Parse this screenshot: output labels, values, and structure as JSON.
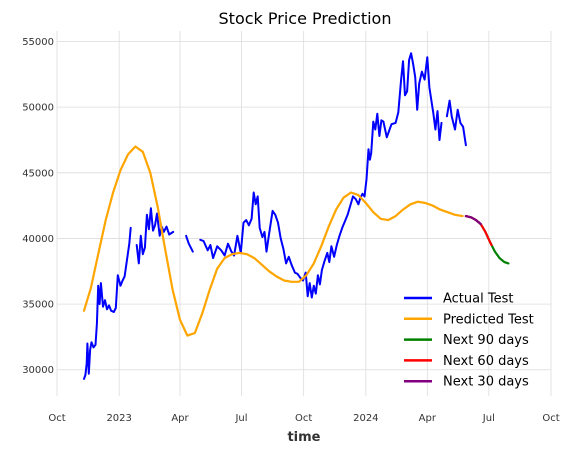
{
  "chart_data": {
    "type": "line",
    "title": "Stock Price Prediction",
    "xlabel": "time",
    "ylabel": "",
    "grid": true,
    "legend_position": "bottom-right",
    "x_axis_type": "date",
    "xlim": [
      "2022-10-01",
      "2024-10-01"
    ],
    "ylim": [
      28000,
      55800
    ],
    "x_ticks": [
      {
        "date": "2022-10-01",
        "label": "Oct"
      },
      {
        "date": "2023-01-01",
        "label": "2023"
      },
      {
        "date": "2023-04-01",
        "label": "Apr"
      },
      {
        "date": "2023-07-01",
        "label": "Jul"
      },
      {
        "date": "2023-10-01",
        "label": "Oct"
      },
      {
        "date": "2024-01-01",
        "label": "2024"
      },
      {
        "date": "2024-04-01",
        "label": "Apr"
      },
      {
        "date": "2024-07-01",
        "label": "Jul"
      },
      {
        "date": "2024-10-01",
        "label": "Oct"
      }
    ],
    "y_ticks": [
      30000,
      35000,
      40000,
      45000,
      50000,
      55000
    ],
    "y_tick_labels": [
      "30000",
      "35000",
      "40000",
      "45000",
      "50000",
      "55000"
    ],
    "series": [
      {
        "name": "Actual Test",
        "color": "#0000ff",
        "points": [
          [
            "2022-11-10",
            29300
          ],
          [
            "2022-11-12",
            29600
          ],
          [
            "2022-11-14",
            30500
          ],
          [
            "2022-11-15",
            32000
          ],
          [
            "2022-11-17",
            29700
          ],
          [
            "2022-11-19",
            31500
          ],
          [
            "2022-11-21",
            32100
          ],
          [
            "2022-11-24",
            31700
          ],
          [
            "2022-11-27",
            31900
          ],
          [
            "2022-11-29",
            33500
          ],
          [
            "2022-12-01",
            36400
          ],
          [
            "2022-12-03",
            35000
          ],
          [
            "2022-12-05",
            36600
          ],
          [
            "2022-12-08",
            34800
          ],
          [
            "2022-12-11",
            35300
          ],
          [
            "2022-12-14",
            34600
          ],
          [
            "2022-12-17",
            34900
          ],
          [
            "2022-12-20",
            34500
          ],
          [
            "2022-12-24",
            34400
          ],
          [
            "2022-12-27",
            34700
          ],
          [
            "2022-12-30",
            37200
          ],
          [
            "2023-01-03",
            36400
          ],
          [
            "2023-01-06",
            36800
          ],
          [
            "2023-01-09",
            37100
          ],
          [
            "2023-01-16",
            39600
          ],
          [
            "2023-01-18",
            40800
          ],
          [
            "2023-01-27",
            39500
          ],
          [
            "2023-01-30",
            38100
          ],
          [
            "2023-02-02",
            40200
          ],
          [
            "2023-02-05",
            38800
          ],
          [
            "2023-02-08",
            39300
          ],
          [
            "2023-02-11",
            41800
          ],
          [
            "2023-02-14",
            40700
          ],
          [
            "2023-02-17",
            42300
          ],
          [
            "2023-02-20",
            40600
          ],
          [
            "2023-02-23",
            41000
          ],
          [
            "2023-02-26",
            41900
          ],
          [
            "2023-03-02",
            40200
          ],
          [
            "2023-03-05",
            40900
          ],
          [
            "2023-03-08",
            40500
          ],
          [
            "2023-03-12",
            40900
          ],
          [
            "2023-03-16",
            40300
          ],
          [
            "2023-03-22",
            40500
          ],
          [
            "2023-04-10",
            40200
          ],
          [
            "2023-04-14",
            39600
          ],
          [
            "2023-04-20",
            39000
          ],
          [
            "2023-05-01",
            39900
          ],
          [
            "2023-05-06",
            39800
          ],
          [
            "2023-05-12",
            39100
          ],
          [
            "2023-05-16",
            39500
          ],
          [
            "2023-05-20",
            38500
          ],
          [
            "2023-05-26",
            39400
          ],
          [
            "2023-06-01",
            39100
          ],
          [
            "2023-06-06",
            38700
          ],
          [
            "2023-06-11",
            39600
          ],
          [
            "2023-06-16",
            39000
          ],
          [
            "2023-06-20",
            38700
          ],
          [
            "2023-06-25",
            40200
          ],
          [
            "2023-06-30",
            38900
          ],
          [
            "2023-07-04",
            41200
          ],
          [
            "2023-07-08",
            41400
          ],
          [
            "2023-07-12",
            41000
          ],
          [
            "2023-07-16",
            41500
          ],
          [
            "2023-07-19",
            43500
          ],
          [
            "2023-07-22",
            42600
          ],
          [
            "2023-07-25",
            43200
          ],
          [
            "2023-07-28",
            40800
          ],
          [
            "2023-08-01",
            40100
          ],
          [
            "2023-08-04",
            40500
          ],
          [
            "2023-08-07",
            39000
          ],
          [
            "2023-08-11",
            40400
          ],
          [
            "2023-08-16",
            42100
          ],
          [
            "2023-08-20",
            41800
          ],
          [
            "2023-08-24",
            41200
          ],
          [
            "2023-08-28",
            40000
          ],
          [
            "2023-09-01",
            39200
          ],
          [
            "2023-09-05",
            38100
          ],
          [
            "2023-09-09",
            38600
          ],
          [
            "2023-09-13",
            38000
          ],
          [
            "2023-09-18",
            37400
          ],
          [
            "2023-09-22",
            37300
          ],
          [
            "2023-09-26",
            37000
          ],
          [
            "2023-09-30",
            36800
          ],
          [
            "2023-10-04",
            37400
          ],
          [
            "2023-10-07",
            35600
          ],
          [
            "2023-10-10",
            36600
          ],
          [
            "2023-10-13",
            35500
          ],
          [
            "2023-10-16",
            36400
          ],
          [
            "2023-10-19",
            35800
          ],
          [
            "2023-10-22",
            37200
          ],
          [
            "2023-10-25",
            36500
          ],
          [
            "2023-10-28",
            37600
          ],
          [
            "2023-11-01",
            38300
          ],
          [
            "2023-11-05",
            38900
          ],
          [
            "2023-11-08",
            38200
          ],
          [
            "2023-11-11",
            39400
          ],
          [
            "2023-11-15",
            38600
          ],
          [
            "2023-11-19",
            39500
          ],
          [
            "2023-11-23",
            40200
          ],
          [
            "2023-11-27",
            40800
          ],
          [
            "2023-12-01",
            41300
          ],
          [
            "2023-12-05",
            41800
          ],
          [
            "2023-12-09",
            42500
          ],
          [
            "2023-12-13",
            43200
          ],
          [
            "2023-12-17",
            43000
          ],
          [
            "2023-12-21",
            42600
          ],
          [
            "2023-12-24",
            43100
          ],
          [
            "2023-12-27",
            43400
          ],
          [
            "2023-12-30",
            43200
          ],
          [
            "2024-01-02",
            44500
          ],
          [
            "2024-01-05",
            46800
          ],
          [
            "2024-01-07",
            46000
          ],
          [
            "2024-01-09",
            46500
          ],
          [
            "2024-01-12",
            48900
          ],
          [
            "2024-01-15",
            48300
          ],
          [
            "2024-01-18",
            49500
          ],
          [
            "2024-01-21",
            47800
          ],
          [
            "2024-01-24",
            49000
          ],
          [
            "2024-01-27",
            48900
          ],
          [
            "2024-02-01",
            47700
          ],
          [
            "2024-02-08",
            48700
          ],
          [
            "2024-02-14",
            48800
          ],
          [
            "2024-02-18",
            49600
          ],
          [
            "2024-02-22",
            52000
          ],
          [
            "2024-02-25",
            53500
          ],
          [
            "2024-02-28",
            50900
          ],
          [
            "2024-03-02",
            51200
          ],
          [
            "2024-03-05",
            53600
          ],
          [
            "2024-03-08",
            54100
          ],
          [
            "2024-03-11",
            53300
          ],
          [
            "2024-03-14",
            52300
          ],
          [
            "2024-03-17",
            49800
          ],
          [
            "2024-03-20",
            51800
          ],
          [
            "2024-03-24",
            52700
          ],
          [
            "2024-03-28",
            52100
          ],
          [
            "2024-04-01",
            53800
          ],
          [
            "2024-04-04",
            51500
          ],
          [
            "2024-04-07",
            50500
          ],
          [
            "2024-04-10",
            49500
          ],
          [
            "2024-04-13",
            48300
          ],
          [
            "2024-04-16",
            49700
          ],
          [
            "2024-04-19",
            47500
          ],
          [
            "2024-04-22",
            48800
          ],
          [
            "2024-04-30",
            49300
          ],
          [
            "2024-05-04",
            50500
          ],
          [
            "2024-05-07",
            49300
          ],
          [
            "2024-05-12",
            48300
          ],
          [
            "2024-05-16",
            49800
          ],
          [
            "2024-05-20",
            48800
          ],
          [
            "2024-05-24",
            48500
          ],
          [
            "2024-05-28",
            47100
          ]
        ]
      },
      {
        "name": "Predicted Test",
        "color": "#ffa500",
        "points": [
          [
            "2022-11-10",
            34500
          ],
          [
            "2022-11-20",
            36200
          ],
          [
            "2022-12-01",
            38800
          ],
          [
            "2022-12-12",
            41400
          ],
          [
            "2022-12-23",
            43500
          ],
          [
            "2023-01-03",
            45200
          ],
          [
            "2023-01-14",
            46400
          ],
          [
            "2023-01-25",
            47000
          ],
          [
            "2023-02-05",
            46600
          ],
          [
            "2023-02-16",
            45000
          ],
          [
            "2023-02-27",
            42400
          ],
          [
            "2023-03-10",
            39200
          ],
          [
            "2023-03-21",
            36100
          ],
          [
            "2023-04-01",
            33800
          ],
          [
            "2023-04-12",
            32600
          ],
          [
            "2023-04-23",
            32800
          ],
          [
            "2023-05-04",
            34300
          ],
          [
            "2023-05-15",
            36100
          ],
          [
            "2023-05-26",
            37700
          ],
          [
            "2023-06-06",
            38500
          ],
          [
            "2023-06-17",
            38800
          ],
          [
            "2023-06-28",
            38900
          ],
          [
            "2023-07-09",
            38800
          ],
          [
            "2023-07-20",
            38500
          ],
          [
            "2023-07-31",
            38000
          ],
          [
            "2023-08-11",
            37500
          ],
          [
            "2023-08-22",
            37100
          ],
          [
            "2023-09-02",
            36800
          ],
          [
            "2023-09-13",
            36700
          ],
          [
            "2023-09-24",
            36700
          ],
          [
            "2023-10-05",
            37200
          ],
          [
            "2023-10-16",
            38100
          ],
          [
            "2023-10-27",
            39400
          ],
          [
            "2023-11-07",
            40900
          ],
          [
            "2023-11-18",
            42200
          ],
          [
            "2023-11-29",
            43100
          ],
          [
            "2023-12-10",
            43500
          ],
          [
            "2023-12-21",
            43300
          ],
          [
            "2024-01-01",
            42700
          ],
          [
            "2024-01-12",
            42000
          ],
          [
            "2024-01-23",
            41500
          ],
          [
            "2024-02-03",
            41400
          ],
          [
            "2024-02-14",
            41700
          ],
          [
            "2024-02-25",
            42200
          ],
          [
            "2024-03-07",
            42600
          ],
          [
            "2024-03-18",
            42800
          ],
          [
            "2024-03-29",
            42700
          ],
          [
            "2024-04-09",
            42500
          ],
          [
            "2024-04-20",
            42200
          ],
          [
            "2024-05-01",
            42000
          ],
          [
            "2024-05-12",
            41800
          ],
          [
            "2024-05-23",
            41700
          ]
        ]
      },
      {
        "name": "Next 90 days",
        "color": "#008000",
        "points": [
          [
            "2024-05-28",
            41700
          ],
          [
            "2024-06-05",
            41600
          ],
          [
            "2024-06-12",
            41400
          ],
          [
            "2024-06-19",
            41100
          ],
          [
            "2024-06-26",
            40500
          ],
          [
            "2024-07-03",
            39700
          ],
          [
            "2024-07-10",
            39000
          ],
          [
            "2024-07-17",
            38500
          ],
          [
            "2024-07-24",
            38200
          ],
          [
            "2024-07-30",
            38100
          ]
        ]
      },
      {
        "name": "Next 60 days",
        "color": "#ff0000",
        "points": [
          [
            "2024-05-28",
            41700
          ],
          [
            "2024-06-05",
            41600
          ],
          [
            "2024-06-12",
            41400
          ],
          [
            "2024-06-19",
            41100
          ],
          [
            "2024-06-26",
            40500
          ],
          [
            "2024-07-03",
            39700
          ],
          [
            "2024-07-05",
            39500
          ]
        ]
      },
      {
        "name": "Next 30 days",
        "color": "#800080",
        "points": [
          [
            "2024-05-28",
            41700
          ],
          [
            "2024-06-05",
            41600
          ],
          [
            "2024-06-12",
            41400
          ],
          [
            "2024-06-19",
            41100
          ]
        ]
      }
    ]
  }
}
